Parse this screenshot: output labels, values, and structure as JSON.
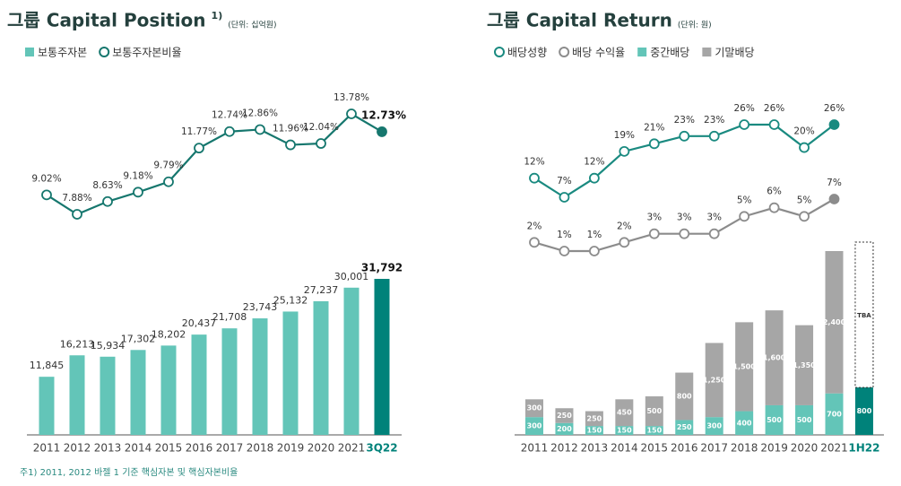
{
  "chart_data": [
    {
      "type": "combo",
      "title": "그룹 Capital Position",
      "title_note": "1)",
      "unit": "(단위: 십억원)",
      "categories": [
        "2011",
        "2012",
        "2013",
        "2014",
        "2015",
        "2016",
        "2017",
        "2018",
        "2019",
        "2020",
        "2021",
        "3Q22"
      ],
      "series": [
        {
          "name": "보통주자본",
          "type": "bar",
          "color": "#63c5b8",
          "highlight_color": "#00827a",
          "bold_last": true,
          "values": [
            11845,
            16213,
            15934,
            17302,
            18202,
            20437,
            21708,
            23743,
            25132,
            27237,
            30001,
            31792
          ],
          "value_labels": [
            "11,845",
            "16,213",
            "15,934",
            "17,302",
            "18,202",
            "20,437",
            "21,708",
            "23,743",
            "25,132",
            "27,237",
            "30,001",
            "31,792"
          ]
        },
        {
          "name": "보통주자본비율",
          "type": "line",
          "color": "#16776e",
          "bold_last": true,
          "values": [
            9.02,
            7.88,
            8.63,
            9.18,
            9.79,
            11.77,
            12.74,
            12.86,
            11.96,
            12.04,
            13.78,
            12.73
          ],
          "value_labels": [
            "9.02%",
            "7.88%",
            "8.63%",
            "9.18%",
            "9.79%",
            "11.77%",
            "12.74%",
            "12.86%",
            "11.96%",
            "12.04%",
            "13.78%",
            "12.73%"
          ]
        }
      ]
    },
    {
      "type": "combo",
      "title": "그룹 Capital Return",
      "unit": "(단위: 원)",
      "stacked": true,
      "categories": [
        "2011",
        "2012",
        "2013",
        "2014",
        "2015",
        "2016",
        "2017",
        "2018",
        "2019",
        "2020",
        "2021",
        "1H22"
      ],
      "series": [
        {
          "name": "배당성향",
          "type": "line",
          "color": "#1a8a80",
          "values": [
            12,
            7,
            12,
            19,
            21,
            23,
            23,
            26,
            26,
            20,
            26,
            null
          ],
          "value_labels": [
            "12%",
            "7%",
            "12%",
            "19%",
            "21%",
            "23%",
            "23%",
            "26%",
            "26%",
            "20%",
            "26%",
            null
          ]
        },
        {
          "name": "배당 수익율",
          "type": "line",
          "color": "#8c8c8c",
          "values": [
            2,
            1,
            1,
            2,
            3,
            3,
            3,
            5,
            6,
            5,
            7,
            null
          ],
          "value_labels": [
            "2%",
            "1%",
            "1%",
            "2%",
            "3%",
            "3%",
            "3%",
            "5%",
            "6%",
            "5%",
            "7%",
            null
          ]
        },
        {
          "name": "중간배당",
          "type": "bar",
          "color": "#63c5b8",
          "highlight_color": "#00827a",
          "values": [
            300,
            200,
            150,
            150,
            150,
            250,
            300,
            400,
            500,
            500,
            700,
            800
          ]
        },
        {
          "name": "기말배당",
          "type": "bar",
          "color": "#a6a6a6",
          "values": [
            300,
            250,
            250,
            450,
            500,
            800,
            1250,
            1500,
            1600,
            1350,
            2400,
            null
          ],
          "value_labels": [
            "300",
            "250",
            "250",
            "450",
            "500",
            "800",
            "1,250",
            "1,500",
            "1,600",
            "1,350",
            "2,400",
            "TBA"
          ]
        }
      ]
    }
  ],
  "footnote": "주1) 2011, 2012 바젤 1 기준 핵심자본 및 핵심자본비율"
}
